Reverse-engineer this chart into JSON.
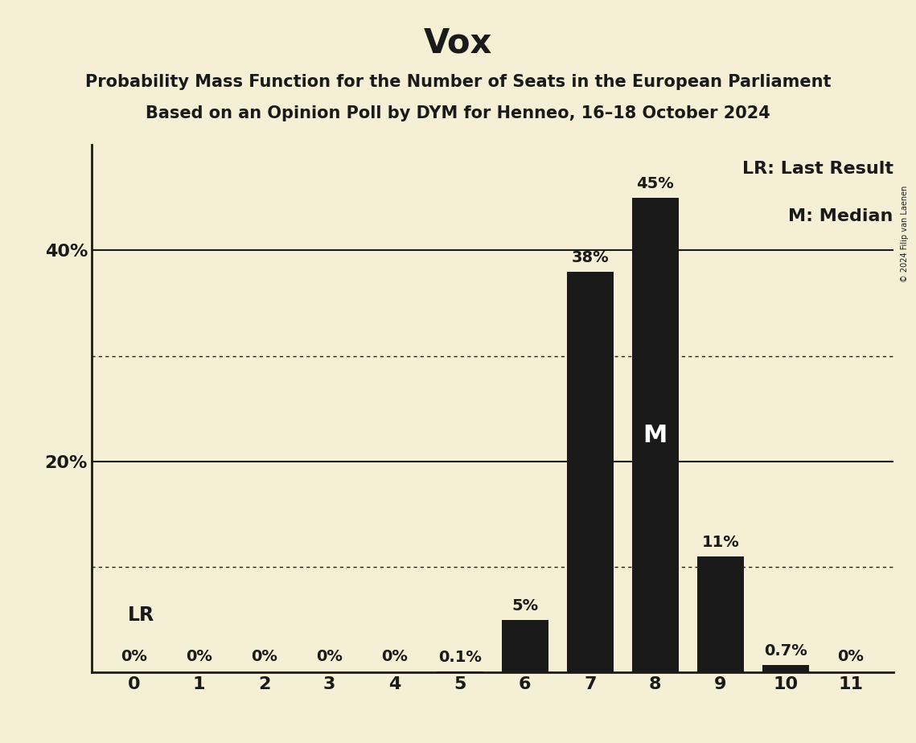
{
  "title": "Vox",
  "subtitle_line1": "Probability Mass Function for the Number of Seats in the European Parliament",
  "subtitle_line2": "Based on an Opinion Poll by DYM for Henneo, 16–18 October 2024",
  "copyright": "© 2024 Filip van Laenen",
  "background_color": "#f5f0d5",
  "bar_color": "#1a1a1a",
  "text_color": "#1a1a1a",
  "seats": [
    0,
    1,
    2,
    3,
    4,
    5,
    6,
    7,
    8,
    9,
    10,
    11
  ],
  "probabilities": [
    0.0,
    0.0,
    0.0,
    0.0,
    0.0,
    0.001,
    0.05,
    0.38,
    0.45,
    0.11,
    0.007,
    0.0
  ],
  "bar_labels": [
    "0%",
    "0%",
    "0%",
    "0%",
    "0%",
    "0.1%",
    "5%",
    "38%",
    "45%",
    "11%",
    "0.7%",
    "0%"
  ],
  "last_result_seat": 0,
  "median_seat": 8,
  "ylim": [
    0,
    0.5
  ],
  "yticks": [
    0.2,
    0.4
  ],
  "ytick_labels": [
    "20%",
    "40%"
  ],
  "solid_gridlines": [
    0.2,
    0.4
  ],
  "dotted_gridlines": [
    0.1,
    0.3
  ],
  "legend_lr": "LR: Last Result",
  "legend_m": "M: Median",
  "title_fontsize": 30,
  "subtitle_fontsize": 15,
  "tick_fontsize": 16,
  "bar_label_fontsize": 14,
  "annotation_fontsize": 22,
  "lr_fontsize": 17,
  "legend_fontsize": 16
}
